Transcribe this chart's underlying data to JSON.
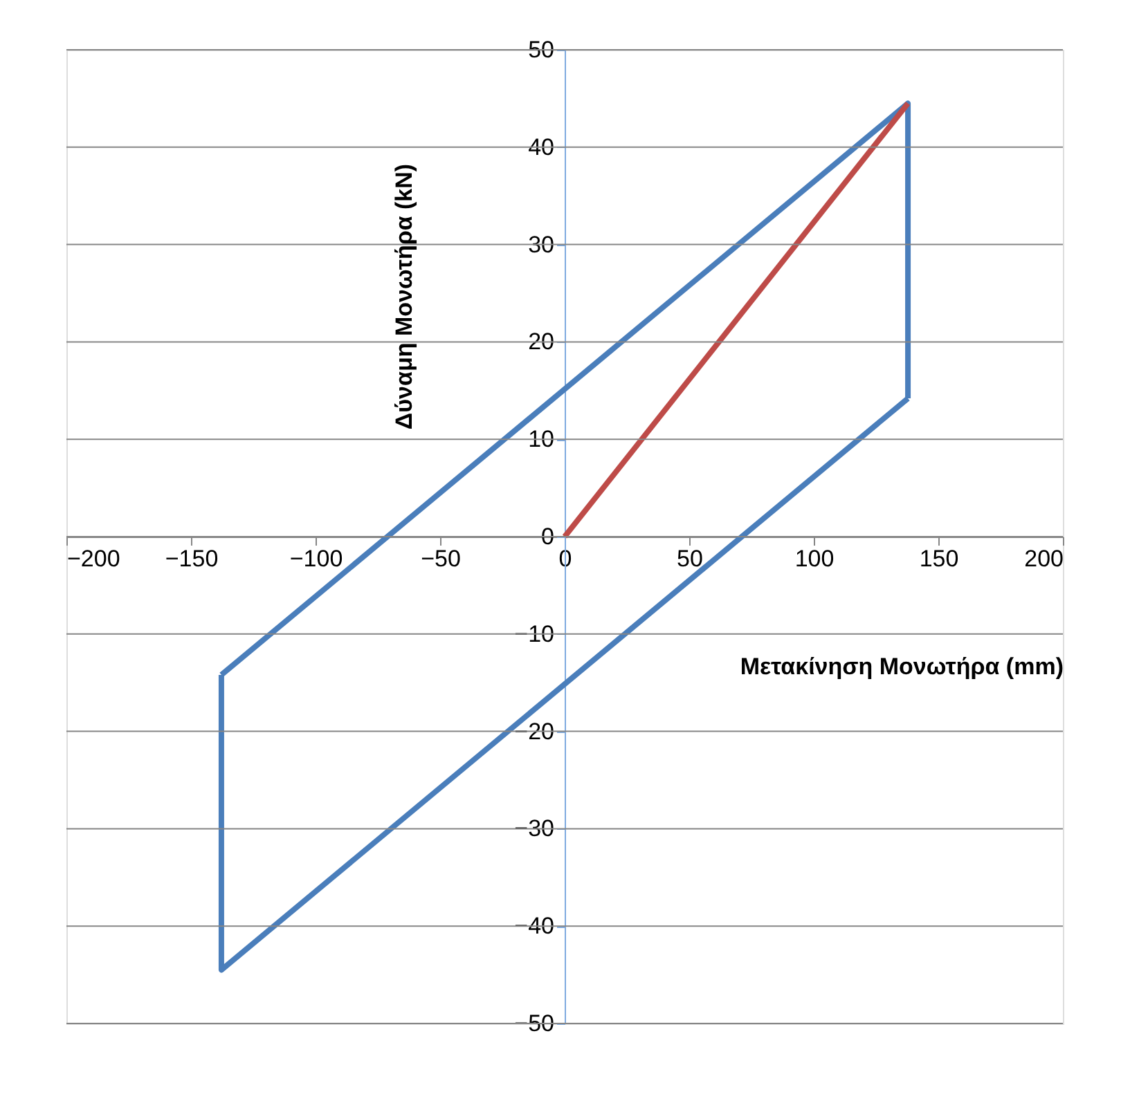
{
  "chart_data": {
    "type": "line",
    "xlabel": "Μετακίνηση Μονωτήρα (mm)",
    "ylabel": "Δύναμη Μονωτήρα  (kN)",
    "xlim": [
      -200,
      200
    ],
    "ylim": [
      -50,
      50
    ],
    "xticks": [
      -200,
      -150,
      -100,
      -50,
      0,
      50,
      100,
      150,
      200
    ],
    "yticks": [
      -50,
      -40,
      -30,
      -20,
      -10,
      0,
      10,
      20,
      30,
      40,
      50
    ],
    "grid": "y",
    "legend": false,
    "marker": "none",
    "line_style": "solid",
    "series": [
      {
        "color": "#4a7ebb",
        "x": [
          -137.8,
          137.8,
          137.8
        ],
        "values": [
          -14.2,
          44.5,
          14.2
        ]
      },
      {
        "color": "#4a7ebb",
        "x": [
          137.8,
          -137.8,
          -137.8
        ],
        "values": [
          14.2,
          -44.5,
          -14.2
        ]
      },
      {
        "color": "#be4b48",
        "x": [
          0,
          137.8
        ],
        "values": [
          0,
          44.5
        ]
      }
    ]
  }
}
